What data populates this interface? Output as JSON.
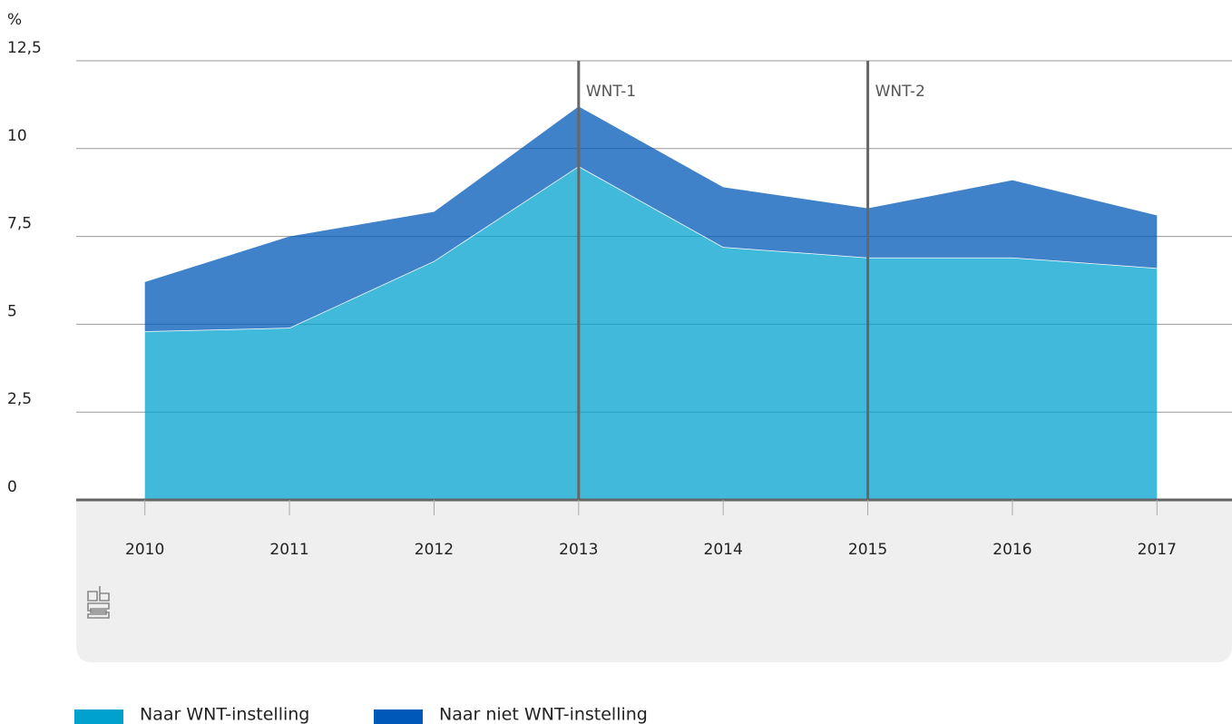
{
  "chart_data": {
    "type": "stacked-area",
    "y_unit": "%",
    "categories": [
      "2010",
      "2011",
      "2012",
      "2013",
      "2014",
      "2015",
      "2016",
      "2017"
    ],
    "series": [
      {
        "name": "Naar WNT-instelling",
        "color": "#00a1cd",
        "values": [
          4.8,
          4.9,
          6.8,
          9.5,
          7.2,
          6.9,
          6.9,
          6.6
        ]
      },
      {
        "name": "Naar niet WNT-instelling",
        "color": "#0058b8",
        "values": [
          1.4,
          2.6,
          1.4,
          1.7,
          1.7,
          1.4,
          2.2,
          1.5
        ]
      }
    ],
    "ylim": [
      0,
      12.5
    ],
    "yticks": [
      0,
      {
        "value": 2.5,
        "label": "2,5"
      },
      5,
      {
        "value": 7.5,
        "label": "7,5"
      },
      10,
      {
        "value": 12.5,
        "label": "12,5"
      }
    ],
    "grid": true,
    "annotations": [
      {
        "label": "WNT-1",
        "x": "2013"
      },
      {
        "label": "WNT-2",
        "x": "2015"
      }
    ]
  }
}
